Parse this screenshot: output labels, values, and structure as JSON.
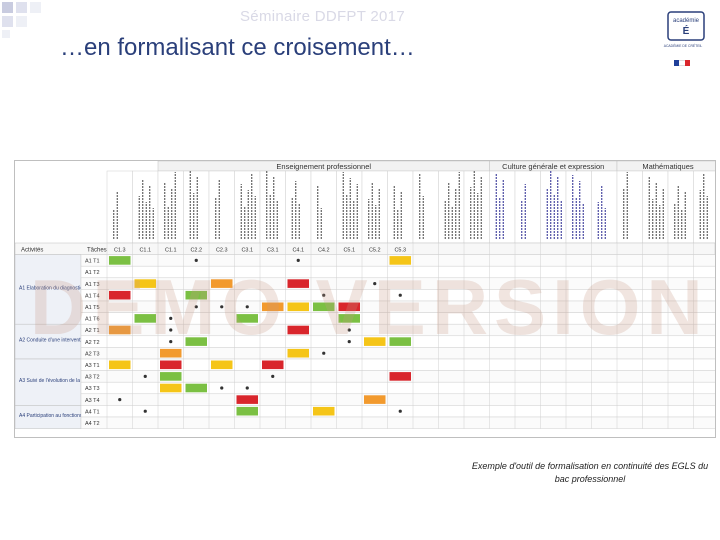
{
  "header": {
    "faded_title": "Séminaire DDFPT 2017",
    "title": "…en formalisant ce croisement…"
  },
  "logo": {
    "wordmark": "ACADÉMIE DE CRÉTEIL",
    "ministry": "RÉPUBLIQUE FRANÇAISE"
  },
  "colors": {
    "green": "#7bc043",
    "yellow": "#f5c518",
    "orange": "#f29a2e",
    "red": "#d9262c",
    "gray": "#bfbfbf",
    "title_blue": "#2a3f7a"
  },
  "grid": {
    "group_headers": [
      "Enseignement professionnel",
      "Culture générale et expression",
      "Mathématiques"
    ],
    "row_header": "Activités",
    "task_header": "Tâches",
    "codes": [
      "C1.3",
      "C1.1",
      "C1.1",
      "C2.2",
      "C2.3",
      "C3.1",
      "C3.1",
      "C4.1",
      "C4.2",
      "C5.1",
      "C5.2",
      "C5.3"
    ],
    "groups": [
      "A1 Elaboration du diagnostic",
      "A2 Conduite d'une intervention",
      "A3 Suivi de l'évolution de la situation et de la prise en charge",
      "A4 Participation au fonctionnement du service"
    ],
    "tasks": [
      "A1 T1",
      "A1 T2",
      "A1 T3",
      "A1 T4",
      "A1 T5",
      "A1 T6",
      "A2 T1",
      "A2 T2",
      "A2 T3",
      "A3 T1",
      "A3 T2",
      "A3 T3",
      "A3 T4",
      "A4 T1",
      "A4 T2"
    ]
  },
  "watermark": "DEMO VERSION",
  "caption": "Exemple d'outil de formalisation en continuité des EGLS du bac professionnel"
}
